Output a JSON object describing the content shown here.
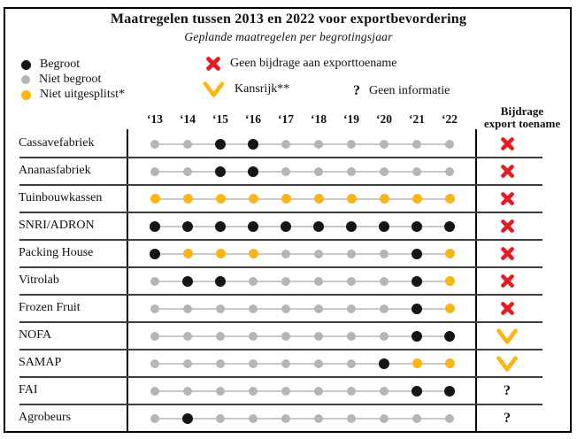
{
  "colors": {
    "black_dot": "#151515",
    "gray_dot": "#b5b5b5",
    "yellow_dot": "#fbb515",
    "red_x": "#e31c23",
    "connector_line": "#c9c9c9",
    "border": "#000000"
  },
  "chart_data": {
    "type": "dot-matrix",
    "title": "Maatregelen tussen 2013 en 2022 voor exportbevordering",
    "subtitle": "Geplande maatregelen per begrotingsjaar",
    "columns": [
      "‘13",
      "‘14",
      "‘15",
      "‘16",
      "‘17",
      "‘18",
      "‘19",
      "‘20",
      "‘21",
      "‘22"
    ],
    "outcome_header_line1": "Bijdrage",
    "outcome_header_line2": "export toename",
    "legend": {
      "dot_states": [
        {
          "key": "b",
          "label": "Begroot"
        },
        {
          "key": "g",
          "label": "Niet begroot"
        },
        {
          "key": "y",
          "label": "Niet uitgesplitst*"
        }
      ],
      "outcomes": [
        {
          "key": "x",
          "label": "Geen bijdrage aan exporttoename"
        },
        {
          "key": "v",
          "label": "Kansrijk**"
        },
        {
          "key": "q",
          "label": "Geen informatie",
          "symbol": "?"
        }
      ]
    },
    "rows": [
      {
        "label": "Cassavefabriek",
        "dots": [
          "g",
          "g",
          "b",
          "b",
          "g",
          "g",
          "g",
          "g",
          "g",
          "g"
        ],
        "outcome": "x"
      },
      {
        "label": "Ananasfabriek",
        "dots": [
          "g",
          "g",
          "b",
          "b",
          "g",
          "g",
          "g",
          "g",
          "g",
          "g"
        ],
        "outcome": "x"
      },
      {
        "label": "Tuinbouwkassen",
        "dots": [
          "y",
          "y",
          "y",
          "y",
          "y",
          "y",
          "y",
          "y",
          "y",
          "y"
        ],
        "outcome": "x"
      },
      {
        "label": "SNRI/ADRON",
        "dots": [
          "b",
          "b",
          "b",
          "b",
          "b",
          "b",
          "b",
          "b",
          "b",
          "b"
        ],
        "outcome": "x"
      },
      {
        "label": "Packing House",
        "dots": [
          "b",
          "y",
          "y",
          "y",
          "g",
          "g",
          "g",
          "g",
          "b",
          "y"
        ],
        "outcome": "x"
      },
      {
        "label": "Vitrolab",
        "dots": [
          "g",
          "b",
          "b",
          "g",
          "g",
          "g",
          "g",
          "g",
          "b",
          "y"
        ],
        "outcome": "x"
      },
      {
        "label": "Frozen Fruit",
        "dots": [
          "g",
          "g",
          "g",
          "g",
          "g",
          "g",
          "g",
          "g",
          "b",
          "y"
        ],
        "outcome": "x"
      },
      {
        "label": "NOFA",
        "dots": [
          "g",
          "g",
          "g",
          "g",
          "g",
          "g",
          "g",
          "g",
          "b",
          "b"
        ],
        "outcome": "v"
      },
      {
        "label": "SAMAP",
        "dots": [
          "g",
          "g",
          "g",
          "g",
          "g",
          "g",
          "g",
          "b",
          "y",
          "y"
        ],
        "outcome": "v"
      },
      {
        "label": "FAI",
        "dots": [
          "g",
          "g",
          "g",
          "g",
          "g",
          "g",
          "g",
          "g",
          "b",
          "b"
        ],
        "outcome": "q"
      },
      {
        "label": "Agrobeurs",
        "dots": [
          "g",
          "b",
          "g",
          "g",
          "g",
          "g",
          "g",
          "g",
          "g",
          "g"
        ],
        "outcome": "q"
      }
    ]
  }
}
